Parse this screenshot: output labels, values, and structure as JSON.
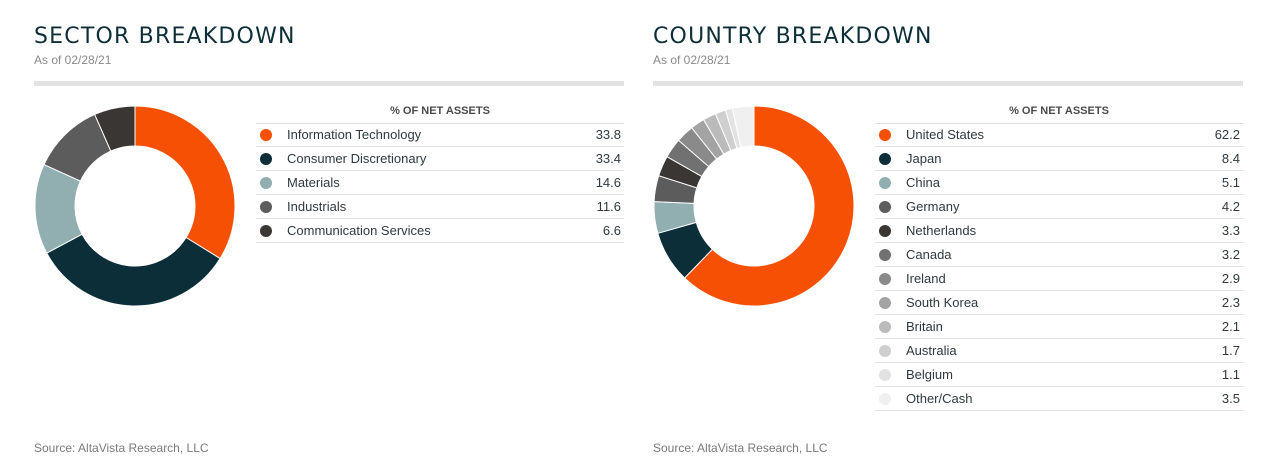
{
  "chart_data": [
    {
      "type": "pie",
      "title": "SECTOR BREAKDOWN",
      "subtitle": "As of 02/28/21",
      "table_header": "% OF NET ASSETS",
      "source": "Source: AltaVista Research, LLC",
      "categories": [
        "Information Technology",
        "Consumer Discretionary",
        "Materials",
        "Industrials",
        "Communication Services"
      ],
      "values": [
        33.8,
        33.4,
        14.6,
        11.6,
        6.6
      ],
      "value_labels": [
        "33.8",
        "33.4",
        "14.6",
        "11.6",
        "6.6"
      ],
      "colors": [
        "#f65005",
        "#0b2e38",
        "#91aeb1",
        "#5c5c5c",
        "#3a3633"
      ]
    },
    {
      "type": "pie",
      "title": "COUNTRY BREAKDOWN",
      "subtitle": "As of 02/28/21",
      "table_header": "% OF NET ASSETS",
      "source": "Source: AltaVista Research, LLC",
      "categories": [
        "United States",
        "Japan",
        "China",
        "Germany",
        "Netherlands",
        "Canada",
        "Ireland",
        "South Korea",
        "Britain",
        "Australia",
        "Belgium",
        "Other/Cash"
      ],
      "values": [
        62.2,
        8.4,
        5.1,
        4.2,
        3.3,
        3.2,
        2.9,
        2.3,
        2.1,
        1.7,
        1.1,
        3.5
      ],
      "value_labels": [
        "62.2",
        "8.4",
        "5.1",
        "4.2",
        "3.3",
        "3.2",
        "2.9",
        "2.3",
        "2.1",
        "1.7",
        "1.1",
        "3.5"
      ],
      "colors": [
        "#f65005",
        "#0b2e38",
        "#91aeb1",
        "#5c5c5c",
        "#3a3633",
        "#717171",
        "#8a8a8a",
        "#a3a3a3",
        "#bbbbbb",
        "#cfcfcf",
        "#e2e2e2",
        "#f0f0f0"
      ]
    }
  ]
}
